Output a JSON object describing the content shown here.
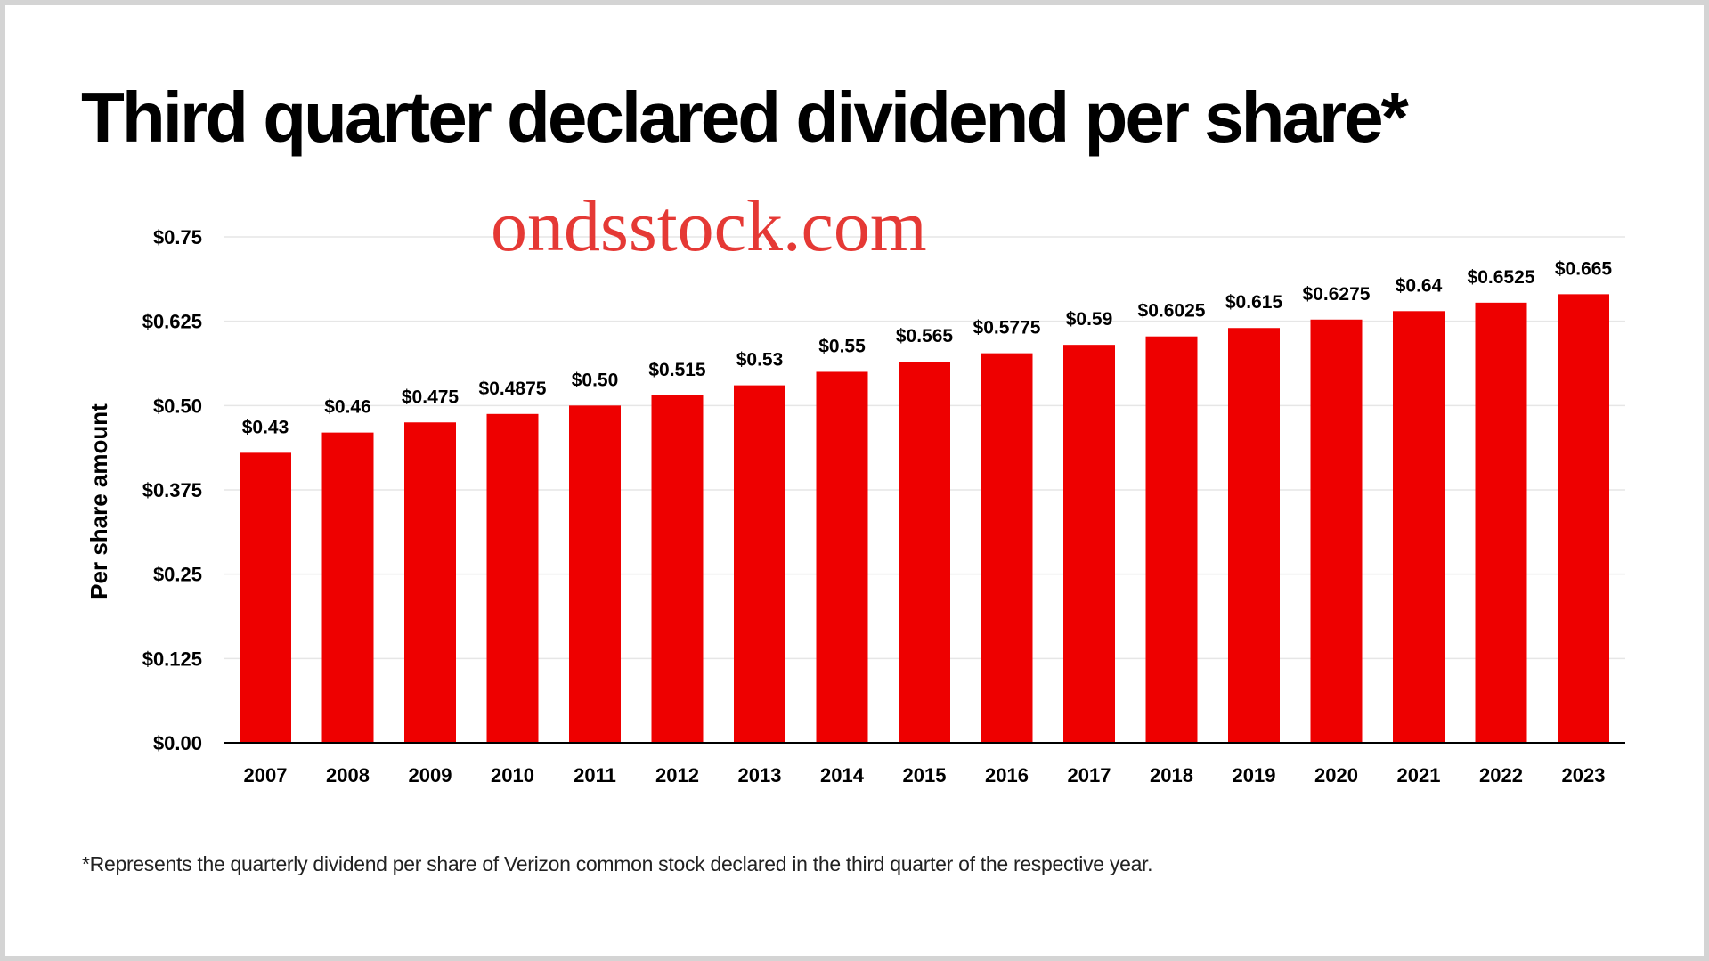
{
  "chart_data": {
    "type": "bar",
    "title": "Third quarter declared dividend per share*",
    "ylabel": "Per share amount",
    "xlabel": "",
    "categories": [
      "2007",
      "2008",
      "2009",
      "2010",
      "2011",
      "2012",
      "2013",
      "2014",
      "2015",
      "2016",
      "2017",
      "2018",
      "2019",
      "2020",
      "2021",
      "2022",
      "2023"
    ],
    "values": [
      0.43,
      0.46,
      0.475,
      0.4875,
      0.5,
      0.515,
      0.53,
      0.55,
      0.565,
      0.5775,
      0.59,
      0.6025,
      0.615,
      0.6275,
      0.64,
      0.6525,
      0.665
    ],
    "value_labels": [
      "$0.43",
      "$0.46",
      "$0.475",
      "$0.4875",
      "$0.50",
      "$0.515",
      "$0.53",
      "$0.55",
      "$0.565",
      "$0.5775",
      "$0.59",
      "$0.6025",
      "$0.615",
      "$0.6275",
      "$0.64",
      "$0.6525",
      "$0.665"
    ],
    "ylim": [
      0,
      0.75
    ],
    "yticks": [
      0,
      0.125,
      0.25,
      0.375,
      0.5,
      0.625,
      0.75
    ],
    "ytick_labels": [
      "$0.00",
      "$0.125",
      "$0.25",
      "$0.375",
      "$0.50",
      "$0.625",
      "$0.75"
    ],
    "grid": true,
    "bar_color": "#ee0000",
    "gridline_color": "#e6e6e6"
  },
  "watermark": "ondsstock.com",
  "watermark_color": "#e53935",
  "footnote": "*Represents the quarterly dividend per share of Verizon common stock declared in the third quarter of the respective year."
}
